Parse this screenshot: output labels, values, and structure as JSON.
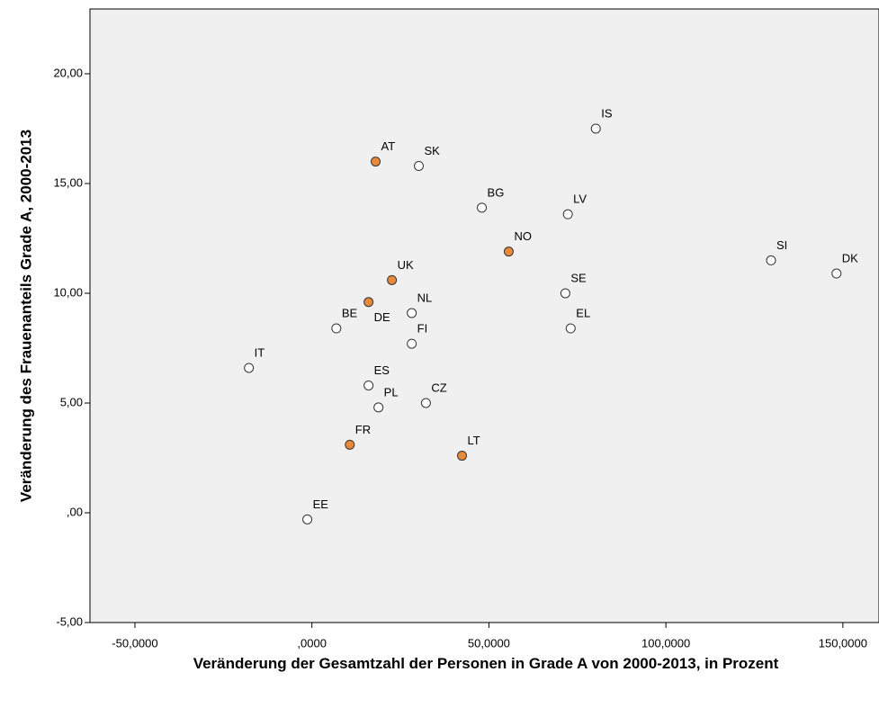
{
  "chart_data": {
    "type": "scatter",
    "x_label": "Veränderung der Gesamtzahl der Personen in Grade A von 2000-2013, in Prozent",
    "y_label": "Veränderung des Frauenanteils Grade A, 2000-2013",
    "labels": [
      "AT",
      "SK",
      "IS",
      "BG",
      "LV",
      "NO",
      "SI",
      "DK",
      "UK",
      "SE",
      "DE",
      "NL",
      "BE",
      "EL",
      "FI",
      "IT",
      "ES",
      "PL",
      "CZ",
      "FR",
      "LT",
      "EE"
    ],
    "x": [
      18.0,
      30.2,
      80.2,
      48.0,
      72.3,
      55.6,
      129.7,
      148.2,
      22.6,
      71.6,
      16.0,
      28.2,
      6.9,
      73.1,
      28.2,
      -17.8,
      16.0,
      18.8,
      32.2,
      10.7,
      42.4,
      -1.3
    ],
    "values": [
      16.0,
      15.8,
      17.5,
      13.9,
      13.6,
      11.9,
      11.5,
      10.9,
      10.6,
      10.0,
      9.6,
      9.1,
      8.4,
      8.4,
      7.7,
      6.6,
      5.8,
      4.8,
      5.0,
      3.1,
      2.6,
      -0.3
    ],
    "colors": [
      "#e8893b",
      "#ffffff",
      "#ffffff",
      "#ffffff",
      "#ffffff",
      "#e8893b",
      "#ffffff",
      "#ffffff",
      "#e8893b",
      "#ffffff",
      "#e8893b",
      "#ffffff",
      "#ffffff",
      "#ffffff",
      "#ffffff",
      "#ffffff",
      "#ffffff",
      "#ffffff",
      "#ffffff",
      "#e8893b",
      "#e8893b",
      "#ffffff"
    ],
    "xlim": [
      -62.7,
      160.2
    ],
    "ylim": [
      -5,
      22.95
    ],
    "xticks": [
      {
        "value": -50,
        "label": "-50,0000"
      },
      {
        "value": 0,
        "label": ",0000"
      },
      {
        "value": 50,
        "label": "50,0000"
      },
      {
        "value": 100,
        "label": "100,0000"
      },
      {
        "value": 150,
        "label": "150,0000"
      }
    ],
    "yticks": [
      {
        "value": -5,
        "label": "-5,00"
      },
      {
        "value": 0,
        "label": ",00"
      },
      {
        "value": 5,
        "label": "5,00"
      },
      {
        "value": 10,
        "label": "10,00"
      },
      {
        "value": 15,
        "label": "15,00"
      },
      {
        "value": 20,
        "label": "20,00"
      }
    ]
  }
}
